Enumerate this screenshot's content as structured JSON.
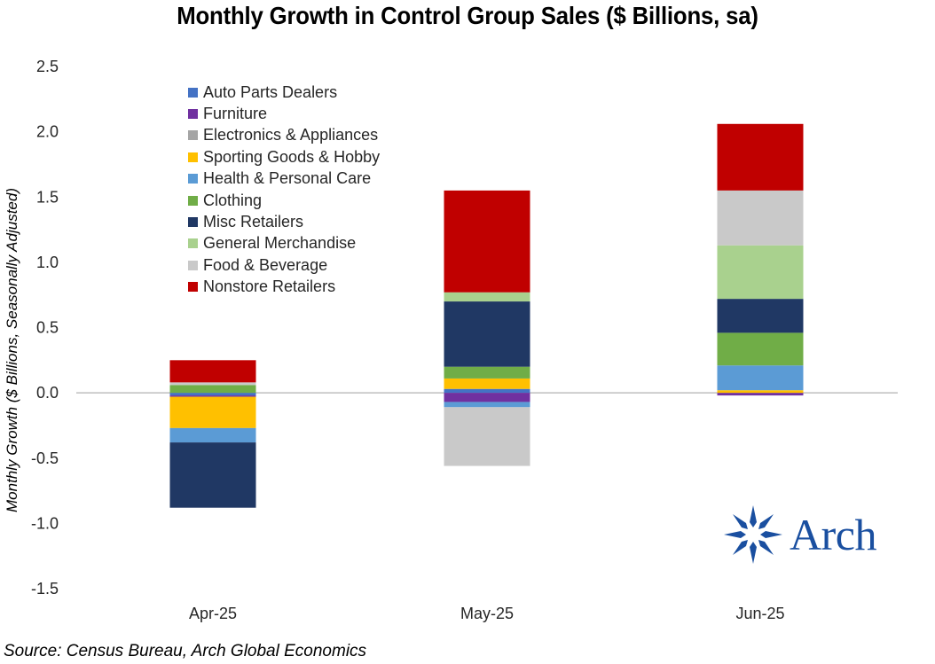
{
  "chart_data": {
    "type": "stacked-bar",
    "title": "Monthly Growth in Control Group Sales ($ Billions, sa)",
    "xlabel": "",
    "ylabel": "Monthly Growth ($ Billions, Seasonally Adjusted)",
    "ylim": [
      -1.5,
      2.5
    ],
    "yticks": [
      "2.5",
      "2.0",
      "1.5",
      "1.0",
      "0.5",
      "0.0",
      "-0.5",
      "-1.0",
      "-1.5"
    ],
    "ytick_values": [
      2.5,
      2.0,
      1.5,
      1.0,
      0.5,
      0.0,
      -0.5,
      -1.0,
      -1.5
    ],
    "categories": [
      "Apr-25",
      "May-25",
      "Jun-25"
    ],
    "series": [
      {
        "name": "Auto Parts Dealers",
        "color": "#4472c4",
        "values": [
          -0.02,
          0.03,
          0.0
        ]
      },
      {
        "name": "Furniture",
        "color": "#7030a0",
        "values": [
          -0.01,
          -0.07,
          -0.02
        ]
      },
      {
        "name": "Electronics & Appliances",
        "color": "#a5a5a5",
        "values": [
          0.0,
          0.0,
          0.0
        ]
      },
      {
        "name": "Sporting Goods & Hobby",
        "color": "#ffc000",
        "values": [
          -0.24,
          0.08,
          0.02
        ]
      },
      {
        "name": "Health & Personal Care",
        "color": "#5b9bd5",
        "values": [
          -0.11,
          -0.04,
          0.19
        ]
      },
      {
        "name": "Clothing",
        "color": "#70ad47",
        "values": [
          0.06,
          0.09,
          0.25
        ]
      },
      {
        "name": "Misc Retailers",
        "color": "#203864",
        "values": [
          -0.5,
          0.5,
          0.26
        ]
      },
      {
        "name": "General Merchandise",
        "color": "#a9d18e",
        "values": [
          0.0,
          0.07,
          0.41
        ]
      },
      {
        "name": "Food & Beverage",
        "color": "#c9c9c9",
        "values": [
          0.02,
          -0.45,
          0.42
        ]
      },
      {
        "name": "Nonstore Retailers",
        "color": "#c00000",
        "values": [
          0.17,
          0.78,
          0.51
        ]
      }
    ]
  },
  "source": "Source: Census Bureau, Arch Global Economics",
  "logo": {
    "text": "Arch"
  }
}
